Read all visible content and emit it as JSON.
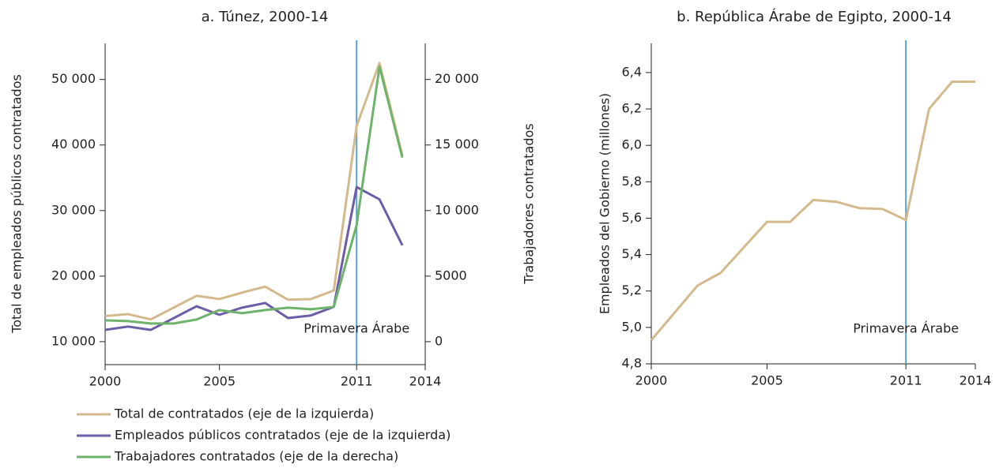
{
  "chart_data": [
    {
      "type": "line",
      "title": "a. Túnez, 2000-14",
      "ylabel": "Total de empleados públicos contratados",
      "y2label": "Trabajadores contratados",
      "x": [
        2000,
        2001,
        2002,
        2003,
        2004,
        2005,
        2006,
        2007,
        2008,
        2009,
        2010,
        2011,
        2012,
        2013
      ],
      "xlim": [
        2000,
        2014
      ],
      "xticks": [
        2000,
        2005,
        2011,
        2014
      ],
      "ylim": [
        6500,
        55500
      ],
      "yticks": [
        {
          "value": 10000,
          "label": "10 000"
        },
        {
          "value": 20000,
          "label": "20 000"
        },
        {
          "value": 30000,
          "label": "30 000"
        },
        {
          "value": 40000,
          "label": "40 000"
        },
        {
          "value": 50000,
          "label": "50 000"
        }
      ],
      "y2lim": [
        -1750,
        22750
      ],
      "y2ticks": [
        0,
        5000,
        {
          "value": 10000,
          "label": "10 000"
        },
        {
          "value": 15000,
          "label": "15 000"
        },
        {
          "value": 20000,
          "label": "20 000"
        }
      ],
      "series": [
        {
          "name": "Total de contratados (eje de la izquierda)",
          "color": "#d4b98c",
          "values": [
            13900,
            14200,
            13400,
            15200,
            17000,
            16500,
            17500,
            18400,
            16400,
            16500,
            17800,
            42900,
            52500,
            38400
          ]
        },
        {
          "name": "Empleados públicos contratados (eje de la izquierda)",
          "color": "#6c5da8",
          "values": [
            11800,
            12300,
            11800,
            13600,
            15400,
            14100,
            15200,
            15900,
            13600,
            14000,
            15300,
            33600,
            31700,
            24700
          ]
        },
        {
          "name": "Trabajadores contratados (eje de la derecha)",
          "color": "#6db36b",
          "axis": "y2",
          "values": [
            1630,
            1570,
            1390,
            1390,
            1690,
            2410,
            2170,
            2410,
            2590,
            2470,
            2650,
            8900,
            20960,
            14040
          ]
        }
      ],
      "event_line": {
        "x": 2011,
        "label": "Primavera Árabe",
        "color": "#5ba3cf"
      }
    },
    {
      "type": "line",
      "title": "b. República Árabe de Egipto, 2000-14",
      "ylabel": "Empleados del Gobierno (millones)",
      "x": [
        2000,
        2001,
        2002,
        2003,
        2004,
        2005,
        2006,
        2007,
        2008,
        2009,
        2010,
        2011,
        2012,
        2013,
        2014
      ],
      "xlim": [
        2000,
        2014
      ],
      "xticks": [
        2000,
        2005,
        2011,
        2014
      ],
      "ylim": [
        4.8,
        6.56
      ],
      "yticks": [
        {
          "value": 4.8,
          "label": "4,8"
        },
        {
          "value": 5.0,
          "label": "5,0"
        },
        {
          "value": 5.2,
          "label": "5,2"
        },
        {
          "value": 5.4,
          "label": "5,4"
        },
        {
          "value": 5.6,
          "label": "5,6"
        },
        {
          "value": 5.8,
          "label": "5,8"
        },
        {
          "value": 6.0,
          "label": "6,0"
        },
        {
          "value": 6.2,
          "label": "6,2"
        },
        {
          "value": 6.4,
          "label": "6,4"
        }
      ],
      "color": "#d4b98c",
      "values": [
        4.93,
        5.08,
        5.23,
        5.3,
        5.44,
        5.58,
        5.58,
        5.7,
        5.69,
        5.655,
        5.65,
        5.59,
        6.2,
        6.35,
        6.35
      ],
      "event_line": {
        "x": 2011,
        "label": "Primavera Árabe",
        "color": "#5ba3cf"
      }
    }
  ]
}
